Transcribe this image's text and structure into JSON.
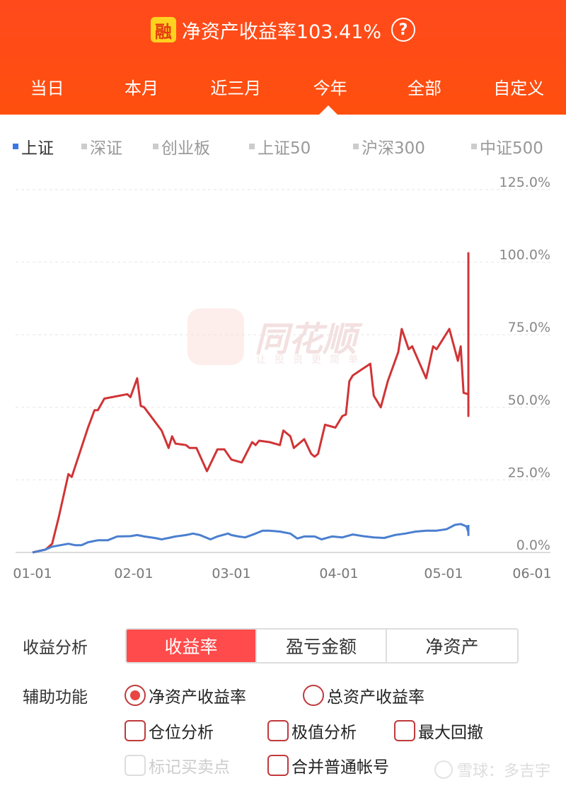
{
  "header": {
    "badge": "融",
    "title": "净资产收益率103.41%",
    "help": "?"
  },
  "tabs": [
    "当日",
    "本月",
    "近三月",
    "今年",
    "全部",
    "自定义"
  ],
  "active_tab": "今年",
  "indices": [
    "上证",
    "深证",
    "创业板",
    "上证50",
    "沪深300",
    "中证500"
  ],
  "active_index": "上证",
  "watermark": {
    "brand": "同花顺",
    "slogan": "让投资更简单"
  },
  "analysis": {
    "label": "收益分析",
    "buttons": [
      "收益率",
      "盈亏金额",
      "净资产"
    ],
    "active": "收益率"
  },
  "aux": {
    "label": "辅助功能",
    "net_asset_return": "净资产收益率",
    "total_asset_return": "总资产收益率",
    "position_analysis": "仓位分析",
    "extreme_analysis": "极值分析",
    "max_drawdown": "最大回撤",
    "mark_trades": "标记买卖点",
    "merge_accounts": "合并普通帐号"
  },
  "footer": "雪球：多吉宇",
  "colors": {
    "accent": "#ff4b17",
    "account_line": "#d03436",
    "index_line": "#4a7fcf"
  },
  "chart_data": {
    "type": "line",
    "x_ticks": [
      "01-01",
      "02-01",
      "03-01",
      "04-01",
      "05-01",
      "06-01"
    ],
    "y_ticks": [
      "0.0%",
      "25.0%",
      "50.0%",
      "75.0%",
      "100.0%",
      "125.0%"
    ],
    "ylim": [
      0,
      125
    ],
    "xlim": [
      "01-01",
      "06-01"
    ],
    "grid": true,
    "series": [
      {
        "color": "#d03436",
        "points": [
          [
            "01-01",
            0
          ],
          [
            "01-05",
            1
          ],
          [
            "01-07",
            3
          ],
          [
            "01-09",
            12
          ],
          [
            "01-12",
            27
          ],
          [
            "01-13",
            26
          ],
          [
            "01-18",
            43
          ],
          [
            "01-20",
            49
          ],
          [
            "01-21",
            49
          ],
          [
            "01-23",
            53
          ],
          [
            "01-30",
            54.5
          ],
          [
            "01-31",
            53.5
          ],
          [
            "02-02",
            60
          ],
          [
            "02-03",
            50.5
          ],
          [
            "02-04",
            50
          ],
          [
            "02-09",
            42
          ],
          [
            "02-11",
            36
          ],
          [
            "02-12",
            40
          ],
          [
            "02-13",
            37.5
          ],
          [
            "02-16",
            37
          ],
          [
            "02-17",
            36
          ],
          [
            "02-19",
            36
          ],
          [
            "02-22",
            28
          ],
          [
            "02-25",
            35.5
          ],
          [
            "02-27",
            35.5
          ],
          [
            "03-01",
            32
          ],
          [
            "03-04",
            31
          ],
          [
            "03-07",
            38
          ],
          [
            "03-08",
            37
          ],
          [
            "03-09",
            38.5
          ],
          [
            "03-12",
            38
          ],
          [
            "03-15",
            37
          ],
          [
            "03-16",
            42
          ],
          [
            "03-18",
            40
          ],
          [
            "03-19",
            36
          ],
          [
            "03-22",
            39
          ],
          [
            "03-24",
            34
          ],
          [
            "03-25",
            33
          ],
          [
            "03-26",
            34
          ],
          [
            "03-28",
            44
          ],
          [
            "03-31",
            43
          ],
          [
            "04-02",
            47
          ],
          [
            "04-03",
            47.5
          ],
          [
            "04-04",
            59
          ],
          [
            "04-05",
            61
          ],
          [
            "04-10",
            65
          ],
          [
            "04-11",
            54
          ],
          [
            "04-13",
            50
          ],
          [
            "04-15",
            59
          ],
          [
            "04-18",
            69
          ],
          [
            "04-19",
            77
          ],
          [
            "04-21",
            70
          ],
          [
            "04-22",
            71
          ],
          [
            "04-26",
            60
          ],
          [
            "04-28",
            71
          ],
          [
            "04-29",
            70
          ],
          [
            "05-03",
            77
          ],
          [
            "05-06",
            66
          ],
          [
            "05-07",
            71
          ],
          [
            "05-08",
            55
          ],
          [
            "05-11",
            54.5
          ],
          [
            "05-12",
            54
          ],
          [
            "05-14",
            50
          ],
          [
            "05-15",
            47
          ],
          [
            "05-16",
            67
          ],
          [
            "05-22",
            76.5
          ],
          [
            "05-23",
            91
          ],
          [
            "05-27",
            103.41
          ]
        ]
      },
      {
        "color": "#4a7fcf",
        "points": [
          [
            "01-01",
            0
          ],
          [
            "01-05",
            1
          ],
          [
            "01-07",
            2
          ],
          [
            "01-12",
            3
          ],
          [
            "01-14",
            2.5
          ],
          [
            "01-16",
            2.5
          ],
          [
            "01-18",
            3.5
          ],
          [
            "01-21",
            4.2
          ],
          [
            "01-24",
            4.2
          ],
          [
            "01-27",
            5.5
          ],
          [
            "01-31",
            5.6
          ],
          [
            "02-02",
            6
          ],
          [
            "02-04",
            5.5
          ],
          [
            "02-07",
            5
          ],
          [
            "02-09",
            4.5
          ],
          [
            "02-11",
            5
          ],
          [
            "02-13",
            5.5
          ],
          [
            "02-16",
            6
          ],
          [
            "02-18",
            6.5
          ],
          [
            "02-20",
            6
          ],
          [
            "02-23",
            4.5
          ],
          [
            "02-25",
            5.5
          ],
          [
            "02-28",
            6.5
          ],
          [
            "03-01",
            6
          ],
          [
            "03-03",
            5.5
          ],
          [
            "03-05",
            5.2
          ],
          [
            "03-08",
            6.5
          ],
          [
            "03-10",
            7.5
          ],
          [
            "03-12",
            7.5
          ],
          [
            "03-15",
            7.2
          ],
          [
            "03-18",
            6.5
          ],
          [
            "03-20",
            4.8
          ],
          [
            "03-22",
            5.5
          ],
          [
            "03-25",
            5.5
          ],
          [
            "03-27",
            4.5
          ],
          [
            "03-30",
            5.5
          ],
          [
            "04-02",
            5.2
          ],
          [
            "04-05",
            6.2
          ],
          [
            "04-08",
            5.6
          ],
          [
            "04-11",
            5.2
          ],
          [
            "04-14",
            5
          ],
          [
            "04-17",
            6
          ],
          [
            "04-20",
            6.5
          ],
          [
            "04-23",
            7.2
          ],
          [
            "04-26",
            7.5
          ],
          [
            "04-29",
            7.5
          ],
          [
            "05-02",
            8
          ],
          [
            "05-05",
            9.5
          ],
          [
            "05-07",
            9.8
          ],
          [
            "05-09",
            9
          ],
          [
            "05-11",
            7
          ],
          [
            "05-14",
            6
          ],
          [
            "05-16",
            6
          ],
          [
            "05-18",
            6.5
          ],
          [
            "05-20",
            7.5
          ],
          [
            "05-23",
            8.2
          ],
          [
            "05-25",
            8.5
          ],
          [
            "05-27",
            8
          ],
          [
            "05-30",
            9.5
          ]
        ]
      }
    ]
  }
}
